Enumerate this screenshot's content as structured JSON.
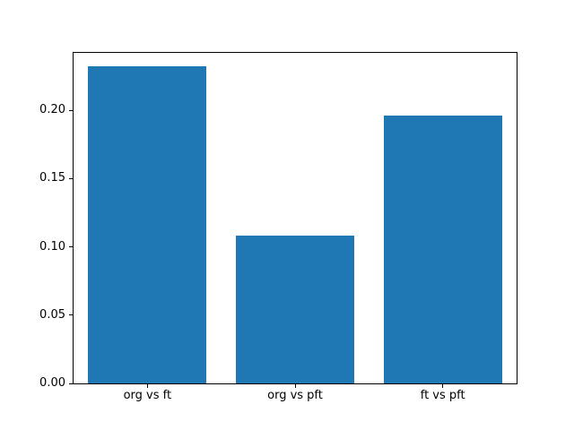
{
  "figure": {
    "background": "#ffffff",
    "spine_color": "#000000",
    "text_color": "#000000"
  },
  "chart_data": {
    "type": "bar",
    "title": "",
    "xlabel": "",
    "ylabel": "",
    "categories": [
      "org vs ft",
      "org vs pft",
      "ft vs pft"
    ],
    "values": [
      0.232,
      0.108,
      0.196
    ],
    "bar_color": "#1f77b4",
    "bar_width_fraction": 0.8,
    "ylim": [
      0,
      0.242
    ],
    "yticks": [
      0,
      0.05,
      0.1,
      0.15,
      0.2
    ],
    "ytick_labels": [
      "0.00",
      "0.05",
      "0.10",
      "0.15",
      "0.20"
    ],
    "grid": false,
    "legend": false
  }
}
